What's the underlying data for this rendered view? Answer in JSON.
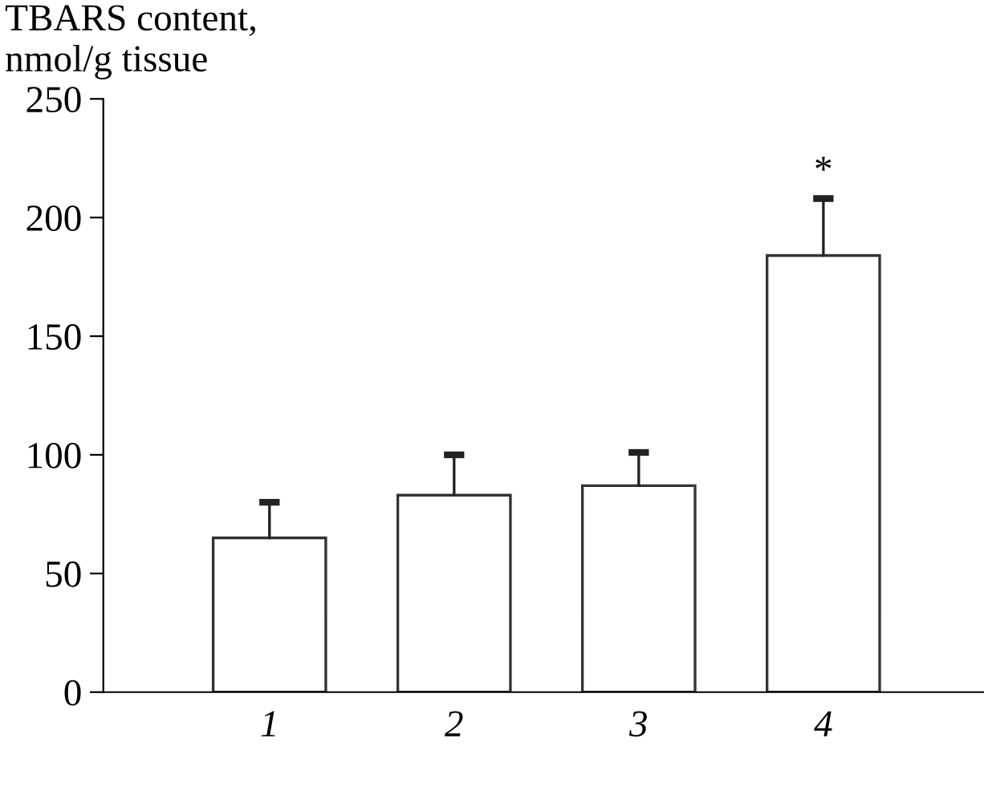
{
  "chart_data": {
    "type": "bar",
    "ylabel": "TBARS content,\nnmol/g tissue",
    "categories": [
      "1",
      "2",
      "3",
      "4"
    ],
    "values": [
      65,
      83,
      87,
      184
    ],
    "errors": [
      15,
      17,
      14,
      24
    ],
    "color": "#ffffff",
    "ylim": [
      0,
      250
    ],
    "yticks": [
      0,
      50,
      100,
      150,
      200,
      250
    ],
    "grid": false,
    "legend": false,
    "annotations": [
      {
        "text": "*",
        "x": "4",
        "y": 208
      }
    ]
  }
}
